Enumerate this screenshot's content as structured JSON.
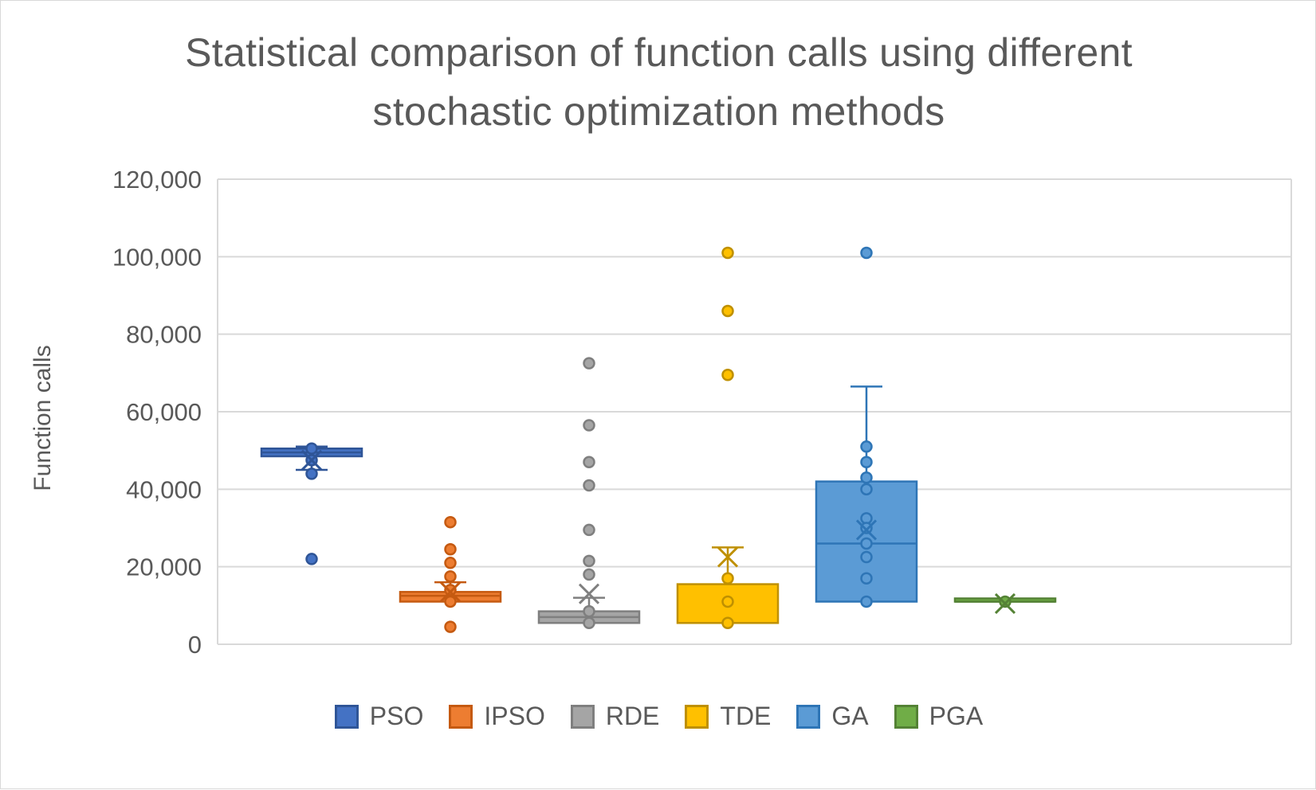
{
  "chart_data": {
    "type": "boxplot",
    "title": "Statistical comparison of function calls using different stochastic optimization methods",
    "title_lines": [
      "Statistical comparison of function calls using different",
      "stochastic optimization methods"
    ],
    "ylabel": "Function calls",
    "xlabel": "",
    "ylim": [
      0,
      120000
    ],
    "yticks": [
      0,
      20000,
      40000,
      60000,
      80000,
      100000,
      120000
    ],
    "ytick_labels": [
      "0",
      "20,000",
      "40,000",
      "60,000",
      "80,000",
      "100,000",
      "120,000"
    ],
    "grid": true,
    "legend_position": "bottom",
    "series": [
      {
        "name": "PSO",
        "color": "#4472c4",
        "fill": "#4472c4",
        "stroke": "#2f5597",
        "whisker_low": 45000,
        "q1": 48500,
        "median": 49500,
        "q3": 50500,
        "whisker_high": 51000,
        "mean": 47500,
        "points": [
          50500,
          47500,
          44000,
          22000
        ]
      },
      {
        "name": "IPSO",
        "color": "#ed7d31",
        "fill": "#ed7d31",
        "stroke": "#c55a11",
        "whisker_low": 11000,
        "q1": 11000,
        "median": 12500,
        "q3": 13500,
        "whisker_high": 16000,
        "mean": 13500,
        "points": [
          31500,
          24500,
          21000,
          17500,
          14000,
          11000,
          4500
        ]
      },
      {
        "name": "RDE",
        "color": "#a5a5a5",
        "fill": "#a5a5a5",
        "stroke": "#7f7f7f",
        "whisker_low": 5500,
        "q1": 5500,
        "median": 7000,
        "q3": 8500,
        "whisker_high": 12000,
        "mean": 13000,
        "points": [
          72500,
          56500,
          47000,
          41000,
          29500,
          21500,
          18000,
          8500,
          5500
        ]
      },
      {
        "name": "TDE",
        "color": "#ffc000",
        "fill": "#ffc000",
        "stroke": "#bf9000",
        "whisker_low": 5500,
        "q1": 5500,
        "median": 5500,
        "q3": 15500,
        "whisker_high": 25000,
        "mean": 22500,
        "points": [
          101000,
          86000,
          69500,
          17000,
          11000,
          5500
        ]
      },
      {
        "name": "GA",
        "color": "#5b9bd5",
        "fill": "#5b9bd5",
        "stroke": "#2e75b6",
        "whisker_low": 11000,
        "q1": 11000,
        "median": 26000,
        "q3": 42000,
        "whisker_high": 66500,
        "mean": 29500,
        "points": [
          101000,
          51000,
          47000,
          43000,
          40000,
          32500,
          30000,
          26000,
          22500,
          17000,
          11000
        ]
      },
      {
        "name": "PGA",
        "color": "#70ad47",
        "fill": "#70ad47",
        "stroke": "#548235",
        "whisker_low": 11000,
        "q1": 11000,
        "median": 11000,
        "q3": 11000,
        "whisker_high": 11000,
        "mean": 10500,
        "points": [
          11000
        ]
      }
    ]
  }
}
